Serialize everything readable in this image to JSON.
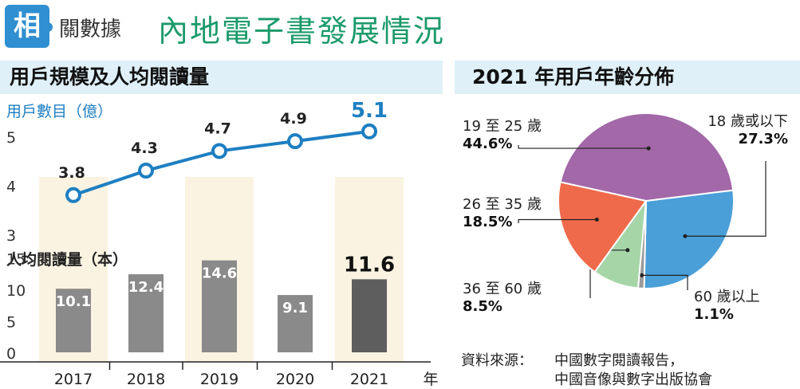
{
  "header": {
    "badge": "相",
    "topic": "關數據",
    "headline": "內地電子書發展情況"
  },
  "left_section": {
    "title": "用戶規模及人均閱讀量"
  },
  "right_section": {
    "title": "2021 年用戶年齡分佈"
  },
  "source": {
    "label": "資料來源：",
    "line1": "中國數字閱讀報告，",
    "line2": "中國音像與數字出版協會"
  },
  "colors": {
    "line": "#1e7fc2",
    "bar": "#8a8a8a",
    "bar_last": "#5e5e5e",
    "highlight_band": "#fbf3e1",
    "pie_purple": "#a268a8",
    "pie_blue": "#4a9fd8",
    "pie_grey": "#9a9a9a",
    "pie_green": "#a6d6a8",
    "pie_red": "#ef6a4a"
  },
  "chart_data": [
    {
      "type": "line",
      "ylabel": "用戶數目（億）",
      "categories": [
        "2017",
        "2018",
        "2019",
        "2020",
        "2021"
      ],
      "values": [
        3.8,
        4.3,
        4.7,
        4.9,
        5.1
      ],
      "value_labels": [
        "3.8",
        "4.3",
        "4.7",
        "4.9",
        "5.1"
      ],
      "y_ticks": [
        "3",
        "4",
        "5"
      ],
      "ylim": [
        3,
        5
      ]
    },
    {
      "type": "bar",
      "ylabel": "人均閱讀量（本）",
      "xlabel": "年",
      "categories": [
        "2017",
        "2018",
        "2019",
        "2020",
        "2021"
      ],
      "values": [
        10.1,
        12.4,
        14.6,
        9.1,
        11.6
      ],
      "value_labels": [
        "10.1",
        "12.4",
        "14.6",
        "9.1",
        "11.6"
      ],
      "y_ticks": [
        "0",
        "5",
        "10",
        "15"
      ],
      "ylim": [
        0,
        15
      ]
    },
    {
      "type": "pie",
      "slices": [
        {
          "label": "18 歲或以下",
          "pct_label": "27.3%",
          "value": 27.3,
          "color": "#4a9fd8"
        },
        {
          "label": "60 歲以上",
          "pct_label": "1.1%",
          "value": 1.1,
          "color": "#9a9a9a"
        },
        {
          "label": "36 至 60 歲",
          "pct_label": "8.5%",
          "value": 8.5,
          "color": "#a6d6a8"
        },
        {
          "label": "26 至 35 歲",
          "pct_label": "18.5%",
          "value": 18.5,
          "color": "#ef6a4a"
        },
        {
          "label": "19 至 25 歲",
          "pct_label": "44.6%",
          "value": 44.6,
          "color": "#a268a8"
        }
      ]
    }
  ]
}
